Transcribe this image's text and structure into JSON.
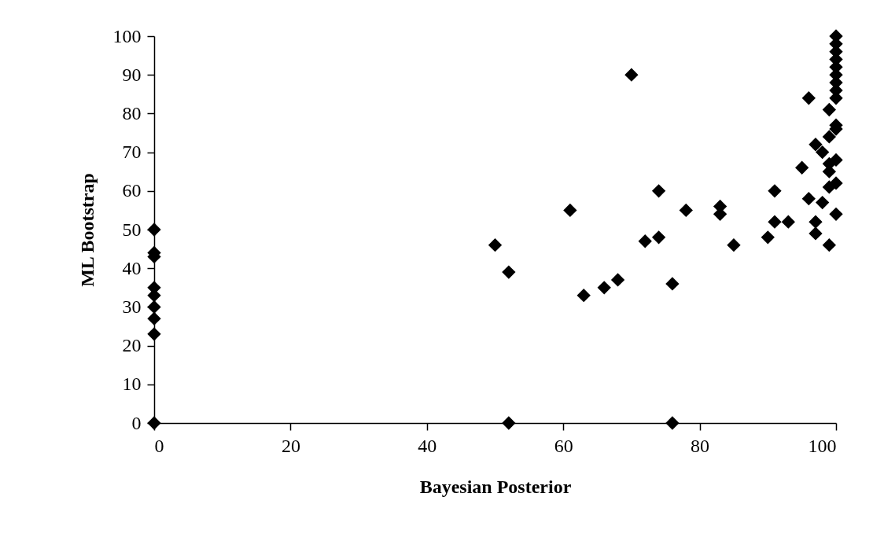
{
  "chart_data": {
    "type": "scatter",
    "xlabel": "Bayesian Posterior",
    "ylabel": "ML Bootstrap",
    "xlim": [
      0,
      100
    ],
    "ylim": [
      0,
      100
    ],
    "xticks": [
      0,
      20,
      40,
      60,
      80,
      100
    ],
    "yticks": [
      0,
      10,
      20,
      30,
      40,
      50,
      60,
      70,
      80,
      90,
      100
    ],
    "grid": false,
    "marker": "diamond",
    "series": [
      {
        "color": "#000000",
        "x": [
          0,
          0,
          0,
          0,
          0,
          0,
          0,
          0,
          0,
          50,
          52,
          52,
          61,
          63,
          66,
          68,
          70,
          72,
          74,
          74,
          76,
          76,
          78,
          83,
          83,
          85,
          90,
          91,
          91,
          93,
          95,
          96,
          96,
          97,
          97,
          97,
          98,
          98,
          99,
          99,
          99,
          99,
          99,
          99,
          100,
          100,
          100,
          100,
          100,
          100,
          100,
          100,
          100,
          100,
          100,
          100,
          100,
          100
        ],
        "values": [
          50,
          44,
          43,
          35,
          33,
          30,
          27,
          23,
          0,
          46,
          39,
          0,
          55,
          33,
          35,
          37,
          90,
          47,
          48,
          60,
          36,
          0,
          55,
          56,
          54,
          46,
          48,
          60,
          52,
          52,
          66,
          84,
          58,
          72,
          52,
          49,
          70,
          57,
          81,
          74,
          67,
          65,
          61,
          46,
          100,
          98,
          96,
          94,
          92,
          90,
          88,
          86,
          84,
          77,
          76,
          68,
          62,
          54
        ]
      }
    ]
  }
}
